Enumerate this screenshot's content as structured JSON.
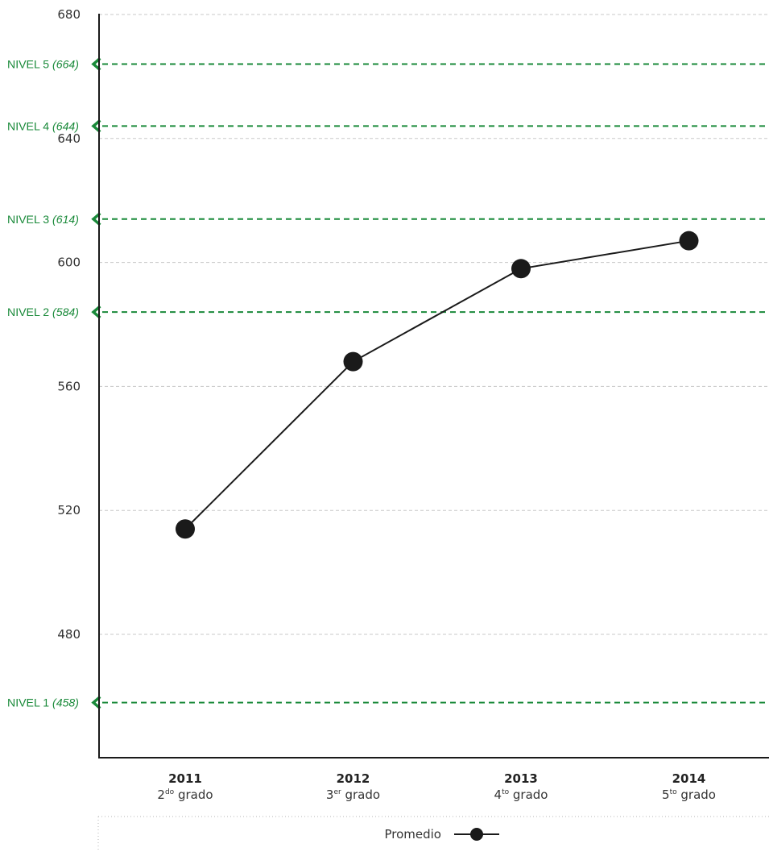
{
  "chart_data": {
    "type": "line",
    "ylim": [
      450,
      680
    ],
    "yticks": [
      {
        "value": 680,
        "label": "680"
      },
      {
        "value": 640,
        "label": "640"
      },
      {
        "value": 600,
        "label": "600"
      },
      {
        "value": 560,
        "label": "560"
      },
      {
        "value": 520,
        "label": "520"
      },
      {
        "value": 480,
        "label": "480"
      }
    ],
    "grid": true,
    "levels": [
      {
        "name": "NIVEL 5",
        "value_label": "(664)",
        "value": 664
      },
      {
        "name": "NIVEL 4",
        "value_label": "(644)",
        "value": 644
      },
      {
        "name": "NIVEL 3",
        "value_label": "(614)",
        "value": 614
      },
      {
        "name": "NIVEL 2",
        "value_label": "(584)",
        "value": 584
      },
      {
        "name": "NIVEL 1",
        "value_label": "(458)",
        "value": 458
      }
    ],
    "categories": [
      {
        "year": "2011",
        "grade_num": "2",
        "grade_sup": "do",
        "grade_word": " grado"
      },
      {
        "year": "2012",
        "grade_num": "3",
        "grade_sup": "er",
        "grade_word": " grado"
      },
      {
        "year": "2013",
        "grade_num": "4",
        "grade_sup": "to",
        "grade_word": " grado"
      },
      {
        "year": "2014",
        "grade_num": "5",
        "grade_sup": "to",
        "grade_word": " grado"
      }
    ],
    "series": [
      {
        "name": "Promedio",
        "values": [
          514,
          568,
          598,
          607
        ]
      }
    ],
    "legend": {
      "position": "bottom",
      "label": "Promedio"
    }
  },
  "colors": {
    "level_line": "#1a8a3a",
    "series_line": "#1a1a1a",
    "grid": "#c8c8c8",
    "axis": "#1a1a1a"
  }
}
